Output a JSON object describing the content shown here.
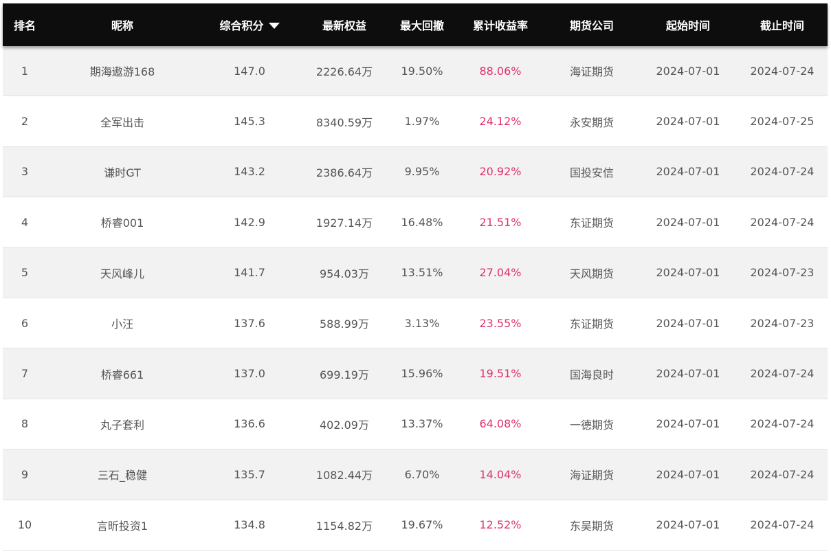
{
  "colors": {
    "header_bg": "#0d0d0d",
    "header_text": "#ffffff",
    "row_odd": "#f2f2f2",
    "row_even": "#ffffff",
    "text": "#555555",
    "return_rate": "#e0306a"
  },
  "header": {
    "rank": "排名",
    "nickname": "昵称",
    "score": "综合积分",
    "equity": "最新权益",
    "drawdown": "最大回撤",
    "return_rate": "累计收益率",
    "company": "期货公司",
    "start": "起始时间",
    "end": "截止时间",
    "sort_icon": "caret-down-icon"
  },
  "rows": [
    {
      "rank": "1",
      "nickname": "期海遨游168",
      "score": "147.0",
      "equity": "2226.64万",
      "drawdown": "19.50%",
      "return_rate": "88.06%",
      "company": "海证期货",
      "start": "2024-07-01",
      "end": "2024-07-24"
    },
    {
      "rank": "2",
      "nickname": "全军出击",
      "score": "145.3",
      "equity": "8340.59万",
      "drawdown": "1.97%",
      "return_rate": "24.12%",
      "company": "永安期货",
      "start": "2024-07-01",
      "end": "2024-07-25"
    },
    {
      "rank": "3",
      "nickname": "谦时GT",
      "score": "143.2",
      "equity": "2386.64万",
      "drawdown": "9.95%",
      "return_rate": "20.92%",
      "company": "国投安信",
      "start": "2024-07-01",
      "end": "2024-07-24"
    },
    {
      "rank": "4",
      "nickname": "桥睿001",
      "score": "142.9",
      "equity": "1927.14万",
      "drawdown": "16.48%",
      "return_rate": "21.51%",
      "company": "东证期货",
      "start": "2024-07-01",
      "end": "2024-07-24"
    },
    {
      "rank": "5",
      "nickname": "天风峰儿",
      "score": "141.7",
      "equity": "954.03万",
      "drawdown": "13.51%",
      "return_rate": "27.04%",
      "company": "天风期货",
      "start": "2024-07-01",
      "end": "2024-07-23"
    },
    {
      "rank": "6",
      "nickname": "小汪",
      "score": "137.6",
      "equity": "588.99万",
      "drawdown": "3.13%",
      "return_rate": "23.55%",
      "company": "东证期货",
      "start": "2024-07-01",
      "end": "2024-07-23"
    },
    {
      "rank": "7",
      "nickname": "桥睿661",
      "score": "137.0",
      "equity": "699.19万",
      "drawdown": "15.96%",
      "return_rate": "19.51%",
      "company": "国海良时",
      "start": "2024-07-01",
      "end": "2024-07-24"
    },
    {
      "rank": "8",
      "nickname": "丸子套利",
      "score": "136.6",
      "equity": "402.09万",
      "drawdown": "13.37%",
      "return_rate": "64.08%",
      "company": "一德期货",
      "start": "2024-07-01",
      "end": "2024-07-24"
    },
    {
      "rank": "9",
      "nickname": "三石_稳健",
      "score": "135.7",
      "equity": "1082.44万",
      "drawdown": "6.70%",
      "return_rate": "14.04%",
      "company": "海证期货",
      "start": "2024-07-01",
      "end": "2024-07-24"
    },
    {
      "rank": "10",
      "nickname": "言昕投资1",
      "score": "134.8",
      "equity": "1154.82万",
      "drawdown": "19.67%",
      "return_rate": "12.52%",
      "company": "东吴期货",
      "start": "2024-07-01",
      "end": "2024-07-24"
    }
  ]
}
